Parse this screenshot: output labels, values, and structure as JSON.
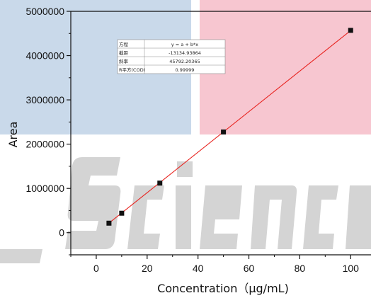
{
  "chart_data": {
    "type": "scatter",
    "xlabel": "Concentration（μg/mL)",
    "ylabel": "Area",
    "xlim": [
      -10,
      108
    ],
    "ylim": [
      -500000,
      5000000
    ],
    "x_ticks": [
      0,
      20,
      40,
      60,
      80,
      100
    ],
    "x_tick_labels": [
      "0",
      "20",
      "40",
      "60",
      "80",
      "100"
    ],
    "y_ticks": [
      0,
      1000000,
      2000000,
      3000000,
      4000000,
      5000000
    ],
    "y_tick_labels": [
      "0",
      "1000000",
      "2000000",
      "3000000",
      "4000000",
      "5000000"
    ],
    "series": [
      {
        "x": [
          5,
          10,
          25,
          50,
          100
        ],
        "y": [
          215000,
          440000,
          1120000,
          2275000,
          4570000
        ],
        "marker": "square",
        "color": "#111111"
      }
    ],
    "fit_line": {
      "intercept": -13134.93864,
      "slope": 45792.20365,
      "x_range": [
        5,
        100
      ],
      "color": "#e8231f"
    },
    "fit_table": {
      "rows": [
        {
          "label": "方程",
          "value": "y = a + b*x"
        },
        {
          "label": "截距",
          "value": "-13134.93864"
        },
        {
          "label": "斜率",
          "value": "45792.20365"
        },
        {
          "label": "R平方(COD)",
          "value": "0.99999"
        }
      ]
    },
    "grid": false,
    "legend": "none"
  },
  "watermark": {
    "text": "Science",
    "colors": {
      "blue": "#c9d9ea",
      "pink": "#f7c6d0",
      "gray": "#d6d6d6"
    }
  }
}
